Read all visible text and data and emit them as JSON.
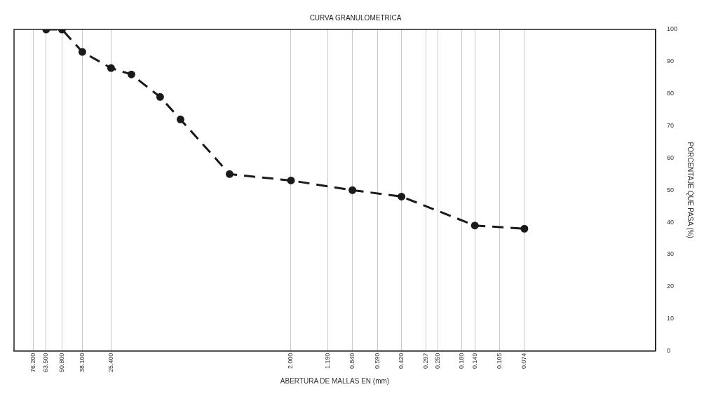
{
  "chart_data": {
    "type": "line",
    "title": "CURVA GRANULOMETRICA",
    "xlabel": "ABERTURA DE MALLAS EN (mm)",
    "ylabel": "PORCENTAJE QUE PASA (%)",
    "x": [
      63.5,
      50.8,
      38.1,
      25.4,
      19.05,
      12.7,
      9.525,
      4.76,
      2.0,
      0.84,
      0.42,
      0.149,
      0.074
    ],
    "series": [
      {
        "color": "#1a1a1a",
        "values": [
          100,
          100,
          93,
          88,
          86,
          79,
          72,
          55,
          53,
          50,
          48,
          39,
          38
        ]
      }
    ],
    "log": "x",
    "xlim": [
      100,
      0.0116
    ],
    "xticks": [
      {
        "value": 76.2,
        "label": "76.200"
      },
      {
        "value": 63.5,
        "label": "63.500"
      },
      {
        "value": 50.8,
        "label": "50.800"
      },
      {
        "value": 38.1,
        "label": "38.100"
      },
      {
        "value": 25.4,
        "label": "25.400"
      },
      {
        "value": 2.0,
        "label": "2.000"
      },
      {
        "value": 1.19,
        "label": "1.190"
      },
      {
        "value": 0.84,
        "label": "0.840"
      },
      {
        "value": 0.59,
        "label": "0.590"
      },
      {
        "value": 0.42,
        "label": "0.420"
      },
      {
        "value": 0.297,
        "label": "0.297"
      },
      {
        "value": 0.25,
        "label": "0.250"
      },
      {
        "value": 0.18,
        "label": "0.180"
      },
      {
        "value": 0.149,
        "label": "0.149"
      },
      {
        "value": 0.105,
        "label": "0.105"
      },
      {
        "value": 0.074,
        "label": "0.074"
      }
    ],
    "ylim": [
      0,
      100
    ],
    "yticks": [
      0,
      10,
      20,
      30,
      40,
      50,
      60,
      70,
      80,
      90,
      100
    ],
    "grid": "x",
    "legend": false,
    "marker": "circle",
    "line_style": "dashed"
  }
}
